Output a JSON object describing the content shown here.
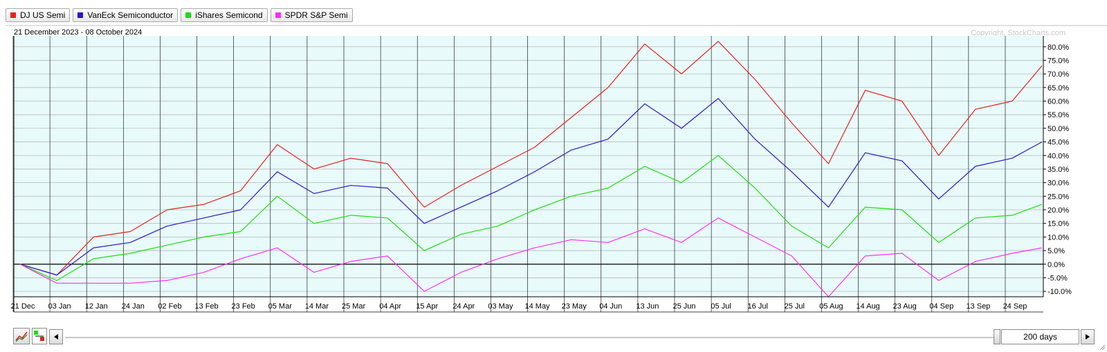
{
  "legend": [
    {
      "label": "DJ US Semi",
      "color": "#e8201c"
    },
    {
      "label": "VanEck Semiconductor",
      "color": "#2a16c8"
    },
    {
      "label": "iShares Semicond",
      "color": "#1adf0e"
    },
    {
      "label": "SPDR S&P Semi",
      "color": "#ff2ef5"
    }
  ],
  "date_range": "21 December 2023 - 08 October 2024",
  "copyright": "Copyright, StockCharts.com",
  "period": "200 days",
  "colors": {
    "plot_bg": "#e8fafa",
    "grid": "#b8b8b8",
    "zero_line": "#000000"
  },
  "icons": {
    "chart_type": "line-chart-icon",
    "compare": "compare-colors-icon",
    "scroll_left": "triangle-left-icon",
    "scroll_right": "triangle-right-icon"
  },
  "chart_data": {
    "type": "line",
    "title": "",
    "x_tick_labels": [
      "21 Dec",
      "03 Jan",
      "12 Jan",
      "24 Jan",
      "02 Feb",
      "13 Feb",
      "23 Feb",
      "05 Mar",
      "14 Mar",
      "25 Mar",
      "04 Apr",
      "15 Apr",
      "24 Apr",
      "03 May",
      "14 May",
      "23 May",
      "04 Jun",
      "13 Jun",
      "25 Jun",
      "05 Jul",
      "16 Jul",
      "25 Jul",
      "05 Aug",
      "14 Aug",
      "23 Aug",
      "04 Sep",
      "13 Sep",
      "24 Sep"
    ],
    "y_tick_labels": [
      "-10.0%",
      "-5.0%",
      "0.0%",
      "5.0%",
      "10.0%",
      "15.0%",
      "20.0%",
      "25.0%",
      "30.0%",
      "35.0%",
      "40.0%",
      "45.0%",
      "50.0%",
      "55.0%",
      "60.0%",
      "65.0%",
      "70.0%",
      "75.0%",
      "80.0%"
    ],
    "ylim": [
      -12,
      84
    ],
    "y_unit": "%",
    "grid": true,
    "legend_position": "top-left",
    "series": [
      {
        "name": "DJ US Semi",
        "color": "#e8201c",
        "points": [
          [
            "21 Dec",
            0
          ],
          [
            "03 Jan",
            -4
          ],
          [
            "12 Jan",
            10
          ],
          [
            "24 Jan",
            12
          ],
          [
            "02 Feb",
            20
          ],
          [
            "13 Feb",
            22
          ],
          [
            "23 Feb",
            27
          ],
          [
            "05 Mar",
            44
          ],
          [
            "14 Mar",
            35
          ],
          [
            "25 Mar",
            39
          ],
          [
            "04 Apr",
            37
          ],
          [
            "15 Apr",
            21
          ],
          [
            "24 Apr",
            29
          ],
          [
            "03 May",
            36
          ],
          [
            "14 May",
            43
          ],
          [
            "23 May",
            54
          ],
          [
            "04 Jun",
            65
          ],
          [
            "13 Jun",
            81
          ],
          [
            "25 Jun",
            70
          ],
          [
            "05 Jul",
            82
          ],
          [
            "16 Jul",
            68
          ],
          [
            "25 Jul",
            52
          ],
          [
            "05 Aug",
            37
          ],
          [
            "14 Aug",
            64
          ],
          [
            "23 Aug",
            60
          ],
          [
            "04 Sep",
            40
          ],
          [
            "13 Sep",
            57
          ],
          [
            "24 Sep",
            60
          ],
          [
            "08 Oct",
            73
          ]
        ]
      },
      {
        "name": "VanEck Semiconductor",
        "color": "#2a16c8",
        "points": [
          [
            "21 Dec",
            0
          ],
          [
            "03 Jan",
            -4
          ],
          [
            "12 Jan",
            6
          ],
          [
            "24 Jan",
            8
          ],
          [
            "02 Feb",
            14
          ],
          [
            "13 Feb",
            17
          ],
          [
            "23 Feb",
            20
          ],
          [
            "05 Mar",
            34
          ],
          [
            "14 Mar",
            26
          ],
          [
            "25 Mar",
            29
          ],
          [
            "04 Apr",
            28
          ],
          [
            "15 Apr",
            15
          ],
          [
            "24 Apr",
            21
          ],
          [
            "03 May",
            27
          ],
          [
            "14 May",
            34
          ],
          [
            "23 May",
            42
          ],
          [
            "04 Jun",
            46
          ],
          [
            "13 Jun",
            59
          ],
          [
            "25 Jun",
            50
          ],
          [
            "05 Jul",
            61
          ],
          [
            "16 Jul",
            46
          ],
          [
            "25 Jul",
            34
          ],
          [
            "05 Aug",
            21
          ],
          [
            "14 Aug",
            41
          ],
          [
            "23 Aug",
            38
          ],
          [
            "04 Sep",
            24
          ],
          [
            "13 Sep",
            36
          ],
          [
            "24 Sep",
            39
          ],
          [
            "08 Oct",
            45
          ]
        ]
      },
      {
        "name": "iShares Semicond",
        "color": "#1adf0e",
        "points": [
          [
            "21 Dec",
            0
          ],
          [
            "03 Jan",
            -6
          ],
          [
            "12 Jan",
            2
          ],
          [
            "24 Jan",
            4
          ],
          [
            "02 Feb",
            7
          ],
          [
            "13 Feb",
            10
          ],
          [
            "23 Feb",
            12
          ],
          [
            "05 Mar",
            25
          ],
          [
            "14 Mar",
            15
          ],
          [
            "25 Mar",
            18
          ],
          [
            "04 Apr",
            17
          ],
          [
            "15 Apr",
            5
          ],
          [
            "24 Apr",
            11
          ],
          [
            "03 May",
            14
          ],
          [
            "14 May",
            20
          ],
          [
            "23 May",
            25
          ],
          [
            "04 Jun",
            28
          ],
          [
            "13 Jun",
            36
          ],
          [
            "25 Jun",
            30
          ],
          [
            "05 Jul",
            40
          ],
          [
            "16 Jul",
            28
          ],
          [
            "25 Jul",
            14
          ],
          [
            "05 Aug",
            6
          ],
          [
            "14 Aug",
            21
          ],
          [
            "23 Aug",
            20
          ],
          [
            "04 Sep",
            8
          ],
          [
            "13 Sep",
            17
          ],
          [
            "24 Sep",
            18
          ],
          [
            "08 Oct",
            22
          ]
        ]
      },
      {
        "name": "SPDR S&P Semi",
        "color": "#ff2ef5",
        "points": [
          [
            "21 Dec",
            0
          ],
          [
            "03 Jan",
            -7
          ],
          [
            "12 Jan",
            -7
          ],
          [
            "24 Jan",
            -7
          ],
          [
            "02 Feb",
            -6
          ],
          [
            "13 Feb",
            -3
          ],
          [
            "23 Feb",
            2
          ],
          [
            "05 Mar",
            6
          ],
          [
            "14 Mar",
            -3
          ],
          [
            "25 Mar",
            1
          ],
          [
            "04 Apr",
            3
          ],
          [
            "15 Apr",
            -10
          ],
          [
            "24 Apr",
            -3
          ],
          [
            "03 May",
            2
          ],
          [
            "14 May",
            6
          ],
          [
            "23 May",
            9
          ],
          [
            "04 Jun",
            8
          ],
          [
            "13 Jun",
            13
          ],
          [
            "25 Jun",
            8
          ],
          [
            "05 Jul",
            17
          ],
          [
            "16 Jul",
            10
          ],
          [
            "25 Jul",
            3
          ],
          [
            "05 Aug",
            -12
          ],
          [
            "14 Aug",
            3
          ],
          [
            "23 Aug",
            4
          ],
          [
            "04 Sep",
            -6
          ],
          [
            "13 Sep",
            1
          ],
          [
            "24 Sep",
            4
          ],
          [
            "08 Oct",
            6
          ]
        ]
      }
    ]
  }
}
